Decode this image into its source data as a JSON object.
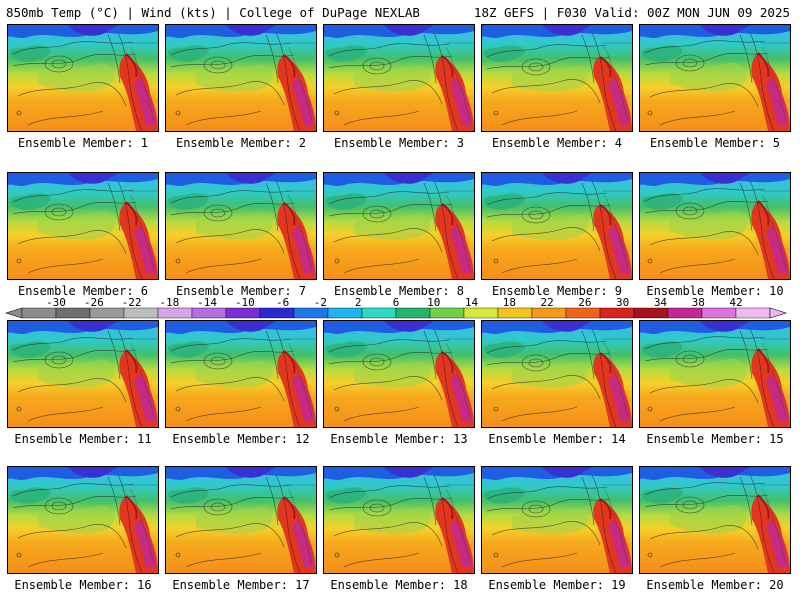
{
  "header": {
    "left": "850mb Temp (°C) | Wind (kts) | College of DuPage NEXLAB",
    "right": "18Z GEFS | F030 Valid: 00Z MON JUN 09 2025"
  },
  "panel_label_prefix": "Ensemble Member: ",
  "members": [
    1,
    2,
    3,
    4,
    5,
    6,
    7,
    8,
    9,
    10,
    11,
    12,
    13,
    14,
    15,
    16,
    17,
    18,
    19,
    20
  ],
  "colorbar": {
    "ticks": [
      -30,
      -26,
      -22,
      -18,
      -14,
      -10,
      -6,
      -2,
      2,
      6,
      10,
      14,
      18,
      22,
      26,
      30,
      34,
      38,
      42
    ],
    "colors": [
      "#8c8c8c",
      "#6f6f6f",
      "#9a9a9a",
      "#bdbdbd",
      "#d6a4e8",
      "#b36fe0",
      "#7a2fd6",
      "#2a2ad4",
      "#1f78e8",
      "#1fb3f0",
      "#2bd9c4",
      "#22b66a",
      "#6fd14a",
      "#d8e83a",
      "#f6c21c",
      "#f59a1a",
      "#f0641a",
      "#d8241a",
      "#a8141e",
      "#c42898",
      "#e070e0",
      "#f0b8f0"
    ]
  }
}
